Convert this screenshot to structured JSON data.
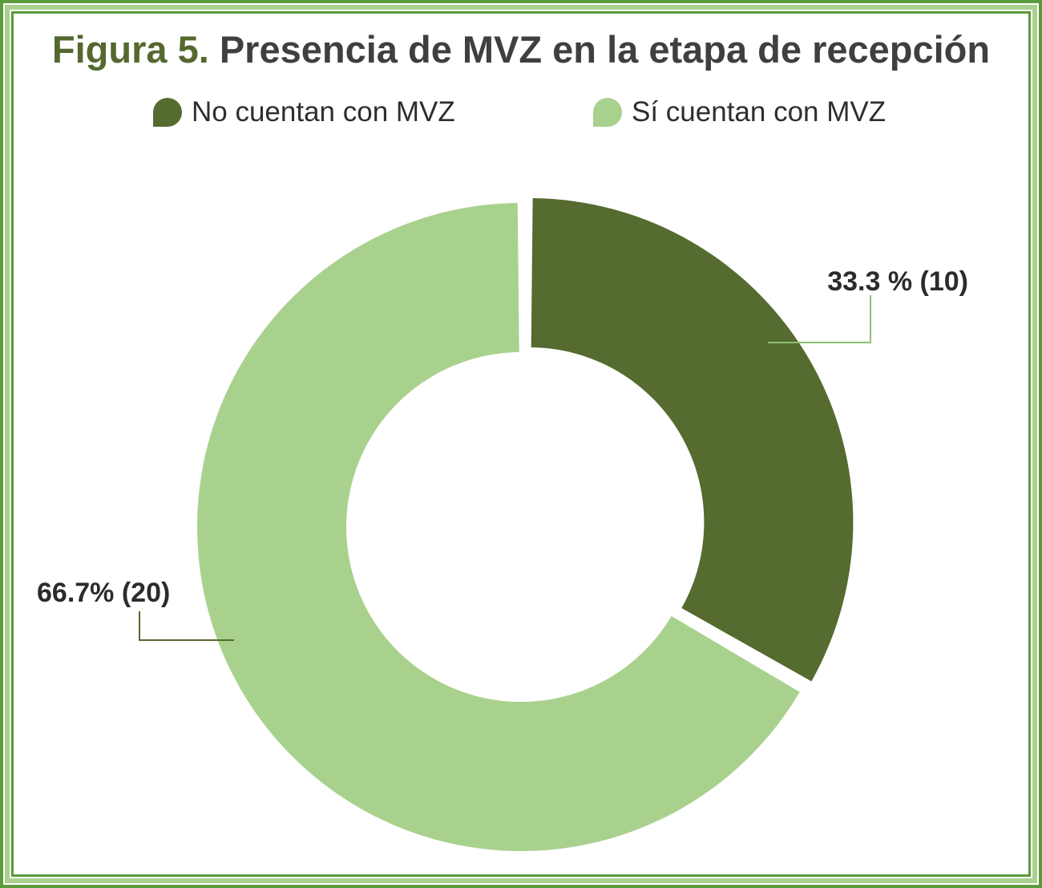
{
  "chart_data": {
    "type": "pie",
    "title_prefix": "Figura 5.",
    "title": "Presencia de MVZ en la etapa de recepción",
    "categories": [
      "No cuentan con MVZ",
      "Sí cuentan con MVZ"
    ],
    "values": [
      10,
      20
    ],
    "percent_labels": [
      "33.3 % (10)",
      "66.7% (20)"
    ],
    "colors": [
      "#556b2f",
      "#a9d18e"
    ],
    "donut": true,
    "exploded_slice": "No cuentan con MVZ",
    "legend_position": "top"
  }
}
